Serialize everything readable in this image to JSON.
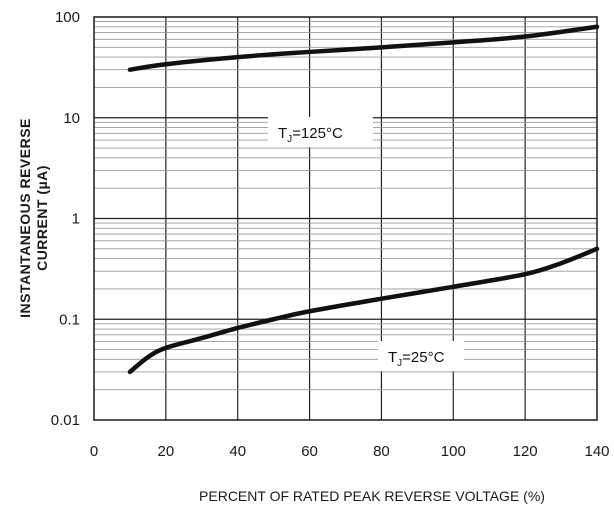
{
  "chart_data": {
    "type": "line",
    "title": "",
    "xlabel": "PERCENT OF RATED PEAK REVERSE VOLTAGE (%)",
    "ylabel_lines": [
      "INSTANTANEOUS REVERSE",
      "CURRENT (µA)"
    ],
    "xlim": [
      0,
      140
    ],
    "ylim": [
      0.01,
      100
    ],
    "yscale": "log",
    "grid": true,
    "x_ticks": [
      0,
      20,
      40,
      60,
      80,
      100,
      120,
      140
    ],
    "x_tick_labels": [
      "0",
      "20",
      "40",
      "60",
      "80",
      "100",
      "120",
      "140"
    ],
    "y_ticks": [
      0.01,
      0.1,
      1,
      10,
      100
    ],
    "y_tick_labels": [
      "0.01",
      "0.1",
      "1",
      "10",
      "100"
    ],
    "series": [
      {
        "label_main": "T",
        "label_sub": "J",
        "label_rest": "=125°C",
        "x": [
          10,
          20,
          40,
          60,
          80,
          100,
          120,
          140
        ],
        "y": [
          30,
          34,
          40,
          45,
          50,
          56,
          64,
          80
        ]
      },
      {
        "label_main": "T",
        "label_sub": "J",
        "label_rest": "=25°C",
        "x": [
          10,
          15,
          20,
          30,
          40,
          50,
          60,
          80,
          100,
          120,
          130,
          140
        ],
        "y": [
          0.03,
          0.042,
          0.052,
          0.065,
          0.082,
          0.1,
          0.12,
          0.16,
          0.21,
          0.28,
          0.36,
          0.5
        ]
      }
    ],
    "line_color": "#111111"
  }
}
